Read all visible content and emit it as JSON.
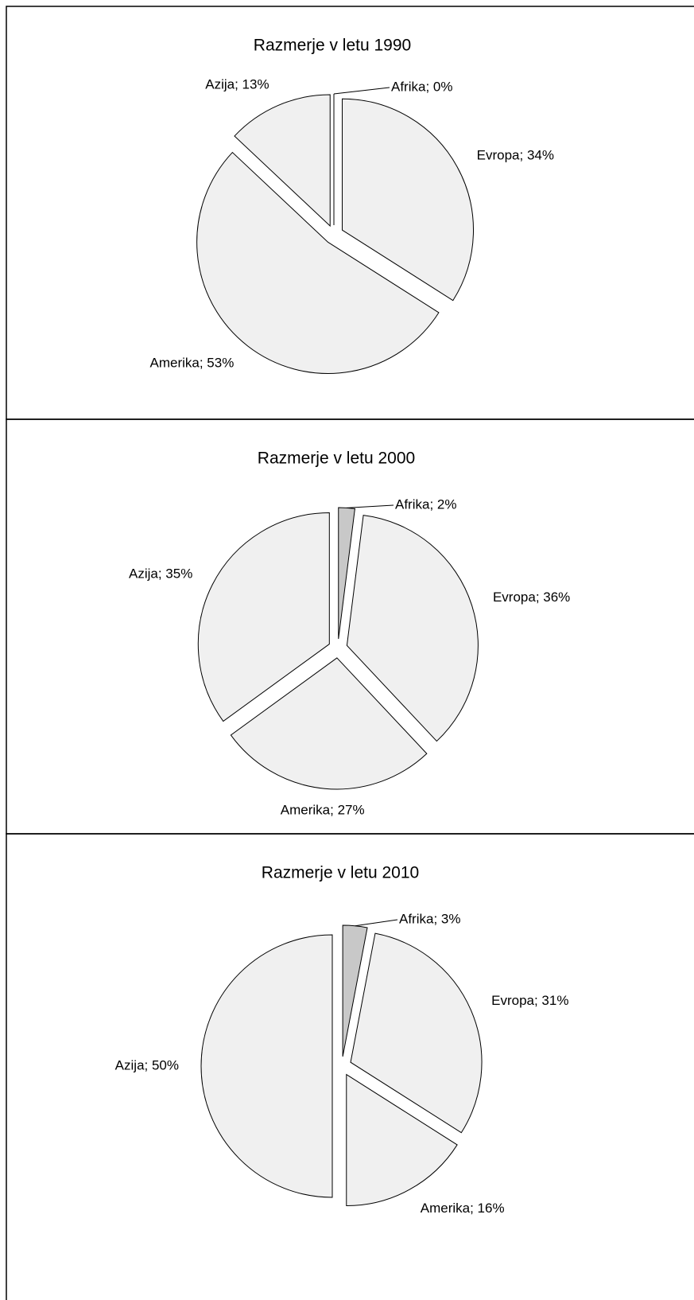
{
  "chart_data": [
    {
      "type": "pie",
      "title": "Razmerje v letu 1990",
      "values": [
        0,
        34,
        53,
        13
      ],
      "value_labels": [
        "Afrika; 0%",
        "Evropa; 34%",
        "Amerika; 53%",
        "Azija; 13%"
      ],
      "colors": [
        "#c8c8c8",
        "#f0f0f0",
        "#f0f0f0",
        "#f0f0f0"
      ]
    },
    {
      "type": "pie",
      "title": "Razmerje v letu 2000",
      "values": [
        2,
        36,
        27,
        35
      ],
      "value_labels": [
        "Afrika; 2%",
        "Evropa; 36%",
        "Amerika; 27%",
        "Azija; 35%"
      ],
      "colors": [
        "#c8c8c8",
        "#f0f0f0",
        "#f0f0f0",
        "#f0f0f0"
      ]
    },
    {
      "type": "pie",
      "title": "Razmerje v letu 2010",
      "values": [
        3,
        31,
        16,
        50
      ],
      "value_labels": [
        "Afrika; 3%",
        "Evropa; 31%",
        "Amerika; 16%",
        "Azija; 50%"
      ],
      "colors": [
        "#c8c8c8",
        "#f0f0f0",
        "#f0f0f0",
        "#f0f0f0"
      ]
    }
  ]
}
